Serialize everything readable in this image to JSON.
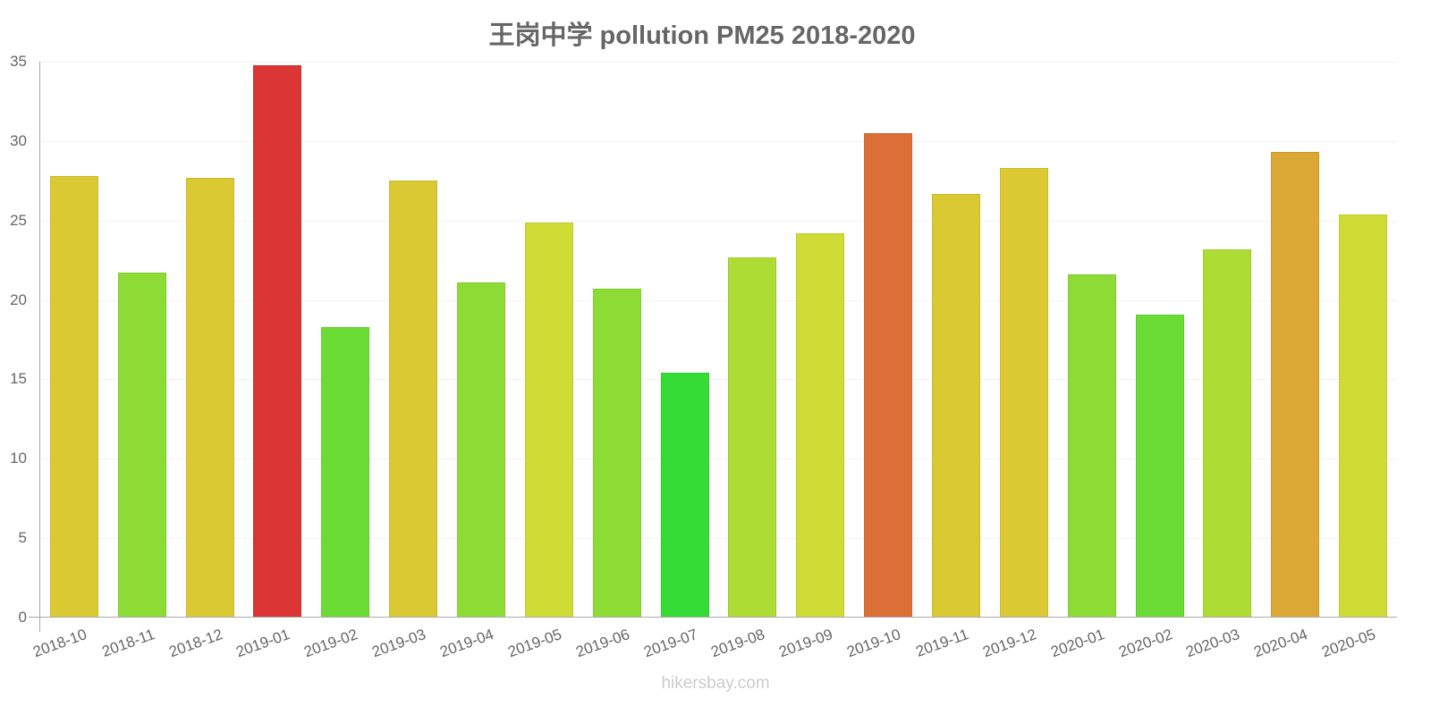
{
  "chart_data": {
    "type": "bar",
    "title": "王岗中学 pollution PM25 2018-2020",
    "xlabel": "",
    "ylabel": "",
    "ylim": [
      0,
      35
    ],
    "yticks": [
      0,
      5,
      10,
      15,
      20,
      25,
      30,
      35
    ],
    "grid": true,
    "legend": null,
    "categories": [
      "2018-10",
      "2018-11",
      "2018-12",
      "2019-01",
      "2019-02",
      "2019-03",
      "2019-04",
      "2019-05",
      "2019-06",
      "2019-07",
      "2019-08",
      "2019-09",
      "2019-10",
      "2019-11",
      "2019-12",
      "2020-01",
      "2020-02",
      "2020-03",
      "2020-04",
      "2020-05"
    ],
    "values": [
      27.8,
      21.7,
      27.7,
      34.8,
      18.3,
      27.5,
      21.1,
      24.9,
      20.7,
      15.4,
      22.7,
      24.2,
      30.5,
      26.7,
      28.3,
      21.6,
      19.1,
      23.2,
      29.3,
      25.4
    ],
    "colors": [
      "#dbc933",
      "#8cdc35",
      "#dbc933",
      "#db3535",
      "#6bdc35",
      "#dbc933",
      "#8cdc35",
      "#cfdc35",
      "#8cdc35",
      "#35dc35",
      "#addc35",
      "#cfdc35",
      "#dc6f35",
      "#dbc933",
      "#dbc933",
      "#8cdc35",
      "#6bdc35",
      "#addc35",
      "#dba835",
      "#cfdc35"
    ]
  },
  "header": {
    "title": "王岗中学 pollution PM25 2018-2020"
  },
  "footer": {
    "source": "hikersbay.com"
  }
}
